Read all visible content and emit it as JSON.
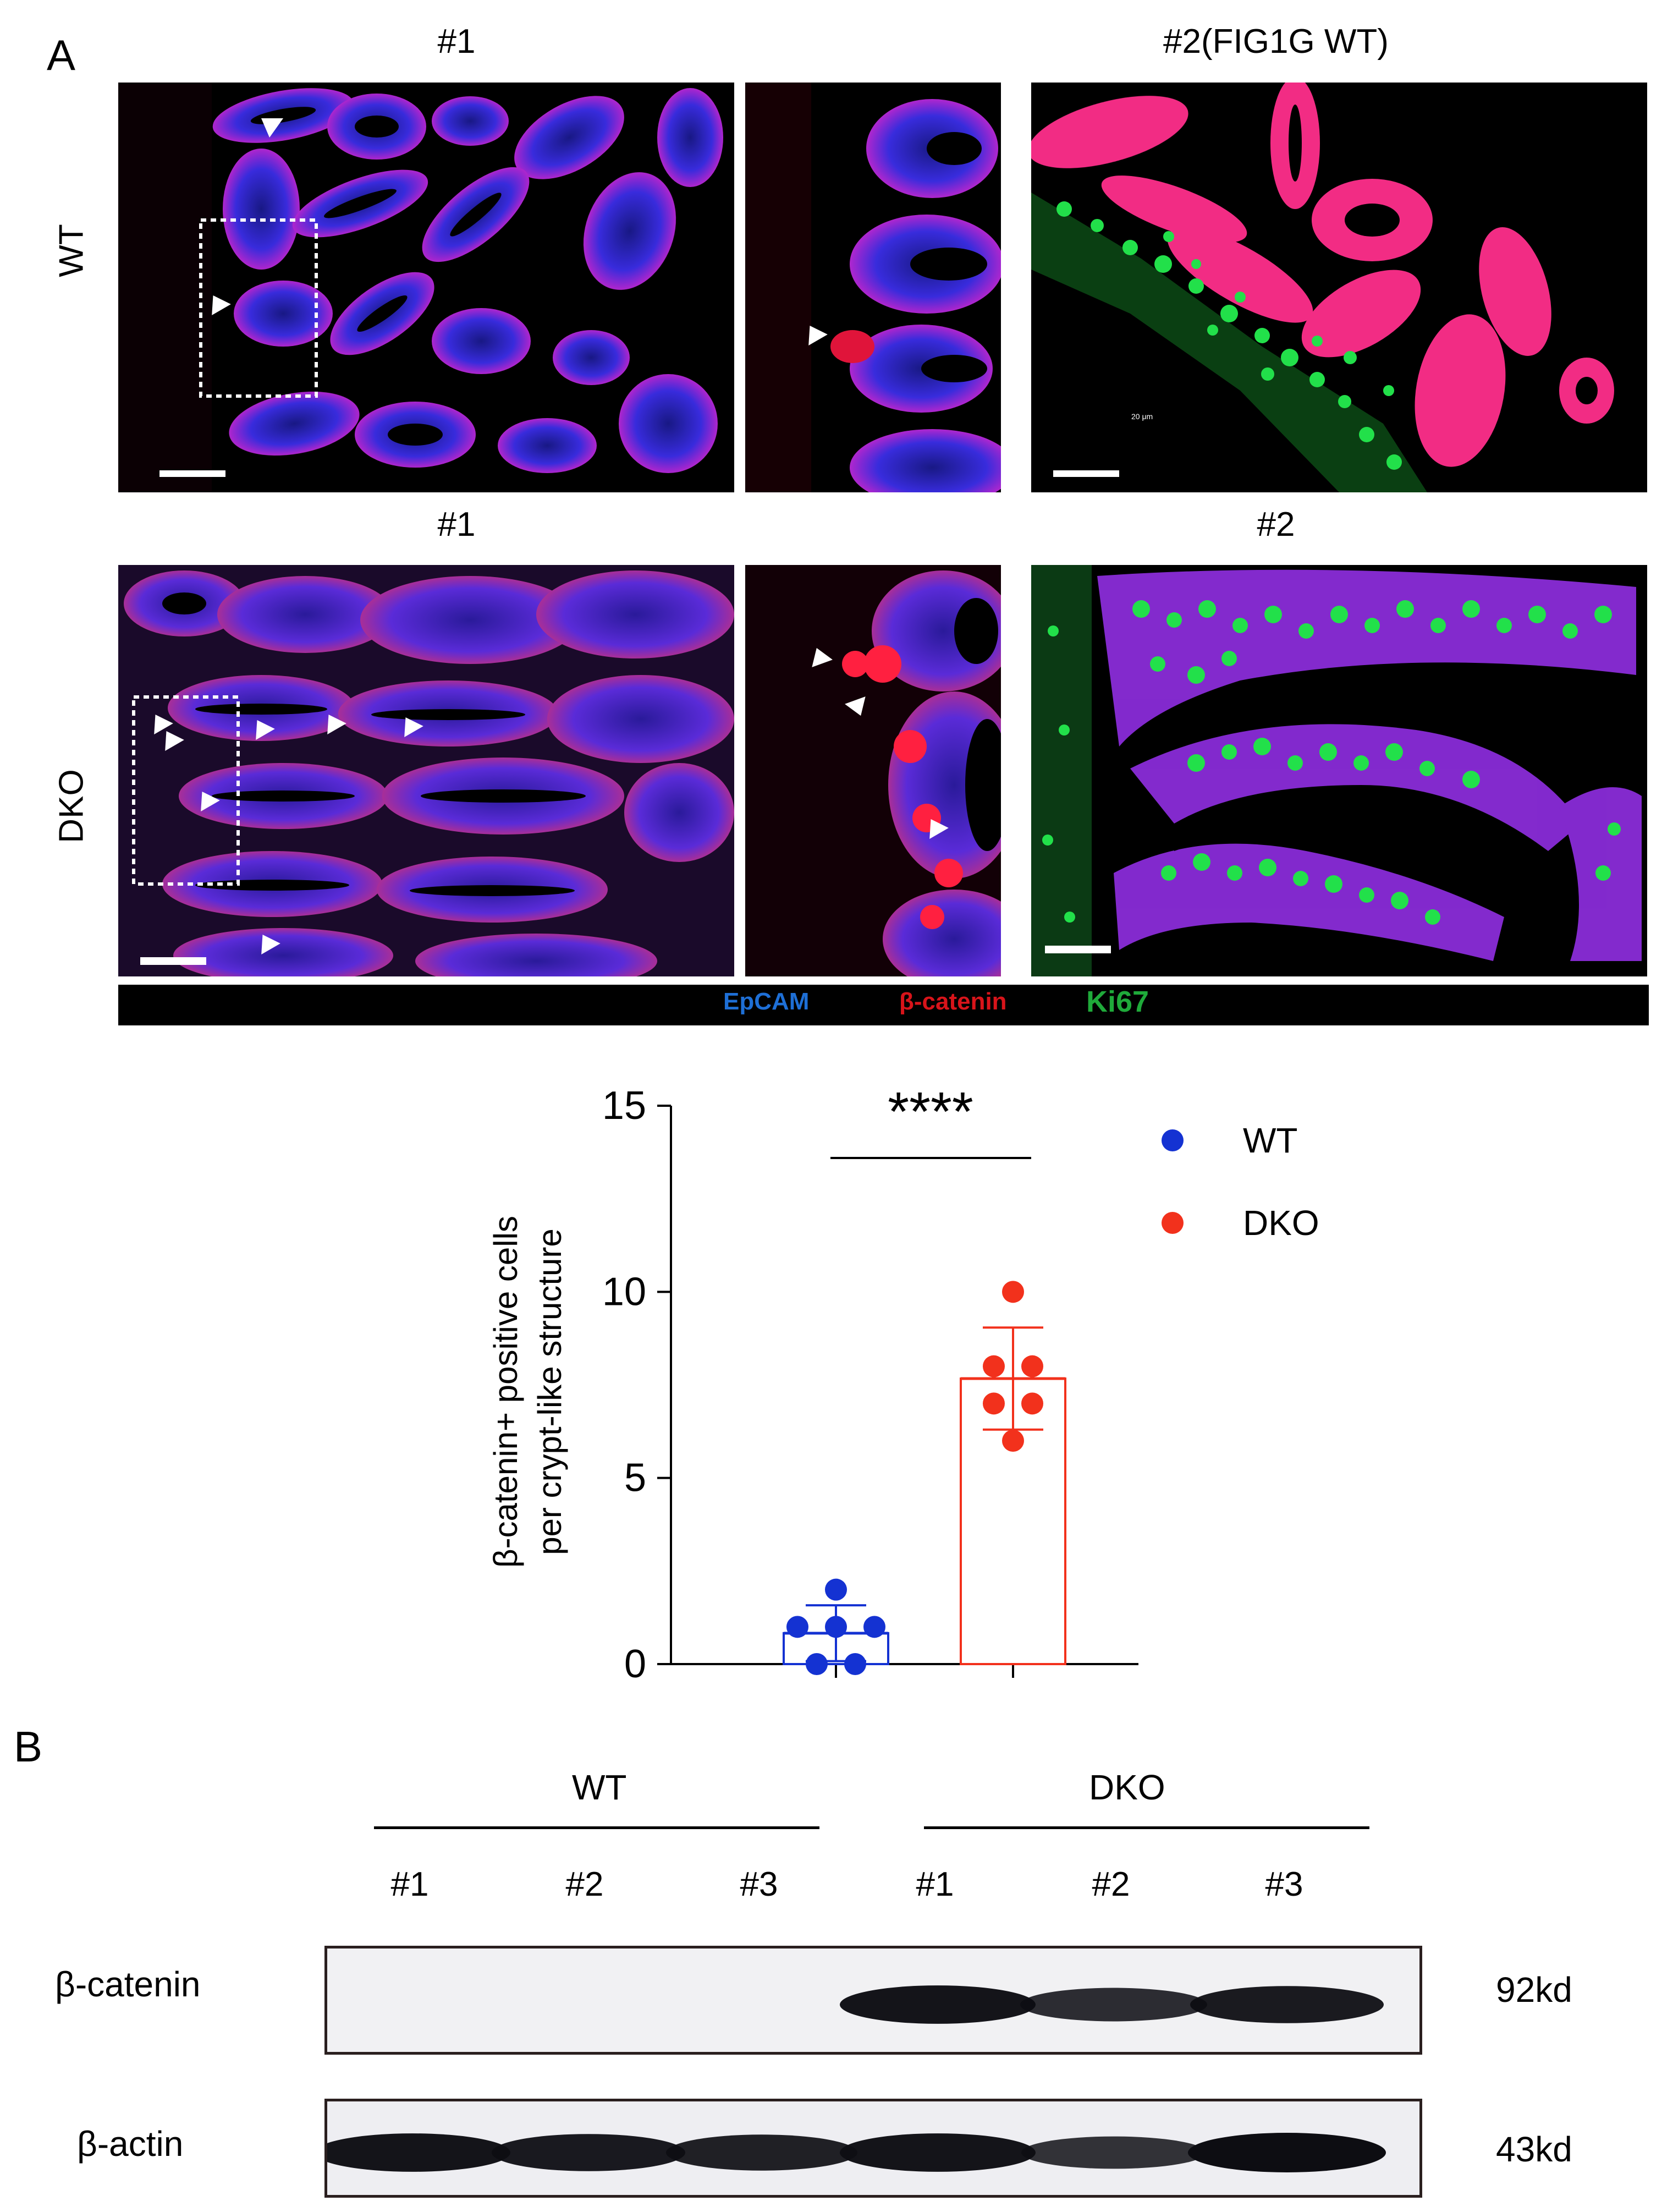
{
  "panel_a": {
    "letter": "A",
    "wt_row_label": "WT",
    "dko_row_label": "DKO",
    "titles": {
      "wt_left": "#1",
      "wt_right": "#2(FIG1G WT)",
      "dko_left": "#1",
      "dko_right": "#2"
    },
    "scale_text": "20 μm",
    "stain_legend": {
      "epcam": "EpCAM",
      "bcatenin": "β-catenin",
      "ki67": "Ki67"
    },
    "colors": {
      "epcam": "#2a4cff",
      "bcatenin": "#ff2020",
      "ki67": "#1fd84a",
      "epcam_label": "#1e6fd6",
      "bcatenin_label": "#d8141a",
      "ki67_label": "#1faa3a"
    }
  },
  "chart_data": {
    "type": "bar",
    "title": "",
    "ylabel_line1": "β-catenin+ positive cells",
    "ylabel_line2": "per crypt-like structure",
    "xlabel": "",
    "ylim": [
      0,
      15
    ],
    "yticks": [
      0,
      5,
      10,
      15
    ],
    "significance": "****",
    "series": [
      {
        "name": "WT",
        "color": "#1432d2",
        "mean": 0.83,
        "sd": 0.75,
        "points": [
          2,
          1,
          1,
          0,
          0,
          1
        ]
      },
      {
        "name": "DKO",
        "color": "#f2311c",
        "mean": 7.67,
        "sd": 1.37,
        "points": [
          10,
          8,
          7,
          8,
          7,
          6
        ]
      }
    ]
  },
  "panel_b": {
    "letter": "B",
    "wt_group": "WT",
    "dko_group": "DKO",
    "lanes": [
      "#1",
      "#2",
      "#3",
      "#1",
      "#2",
      "#3"
    ],
    "blots": [
      {
        "label": "β-catenin",
        "size": "92kd",
        "bands": [
          0,
          0,
          0,
          0.95,
          0.75,
          0.9
        ]
      },
      {
        "label": "β-actin",
        "size": "43kd",
        "bands": [
          0.95,
          0.9,
          0.85,
          0.95,
          0.7,
          1.0
        ]
      }
    ]
  }
}
